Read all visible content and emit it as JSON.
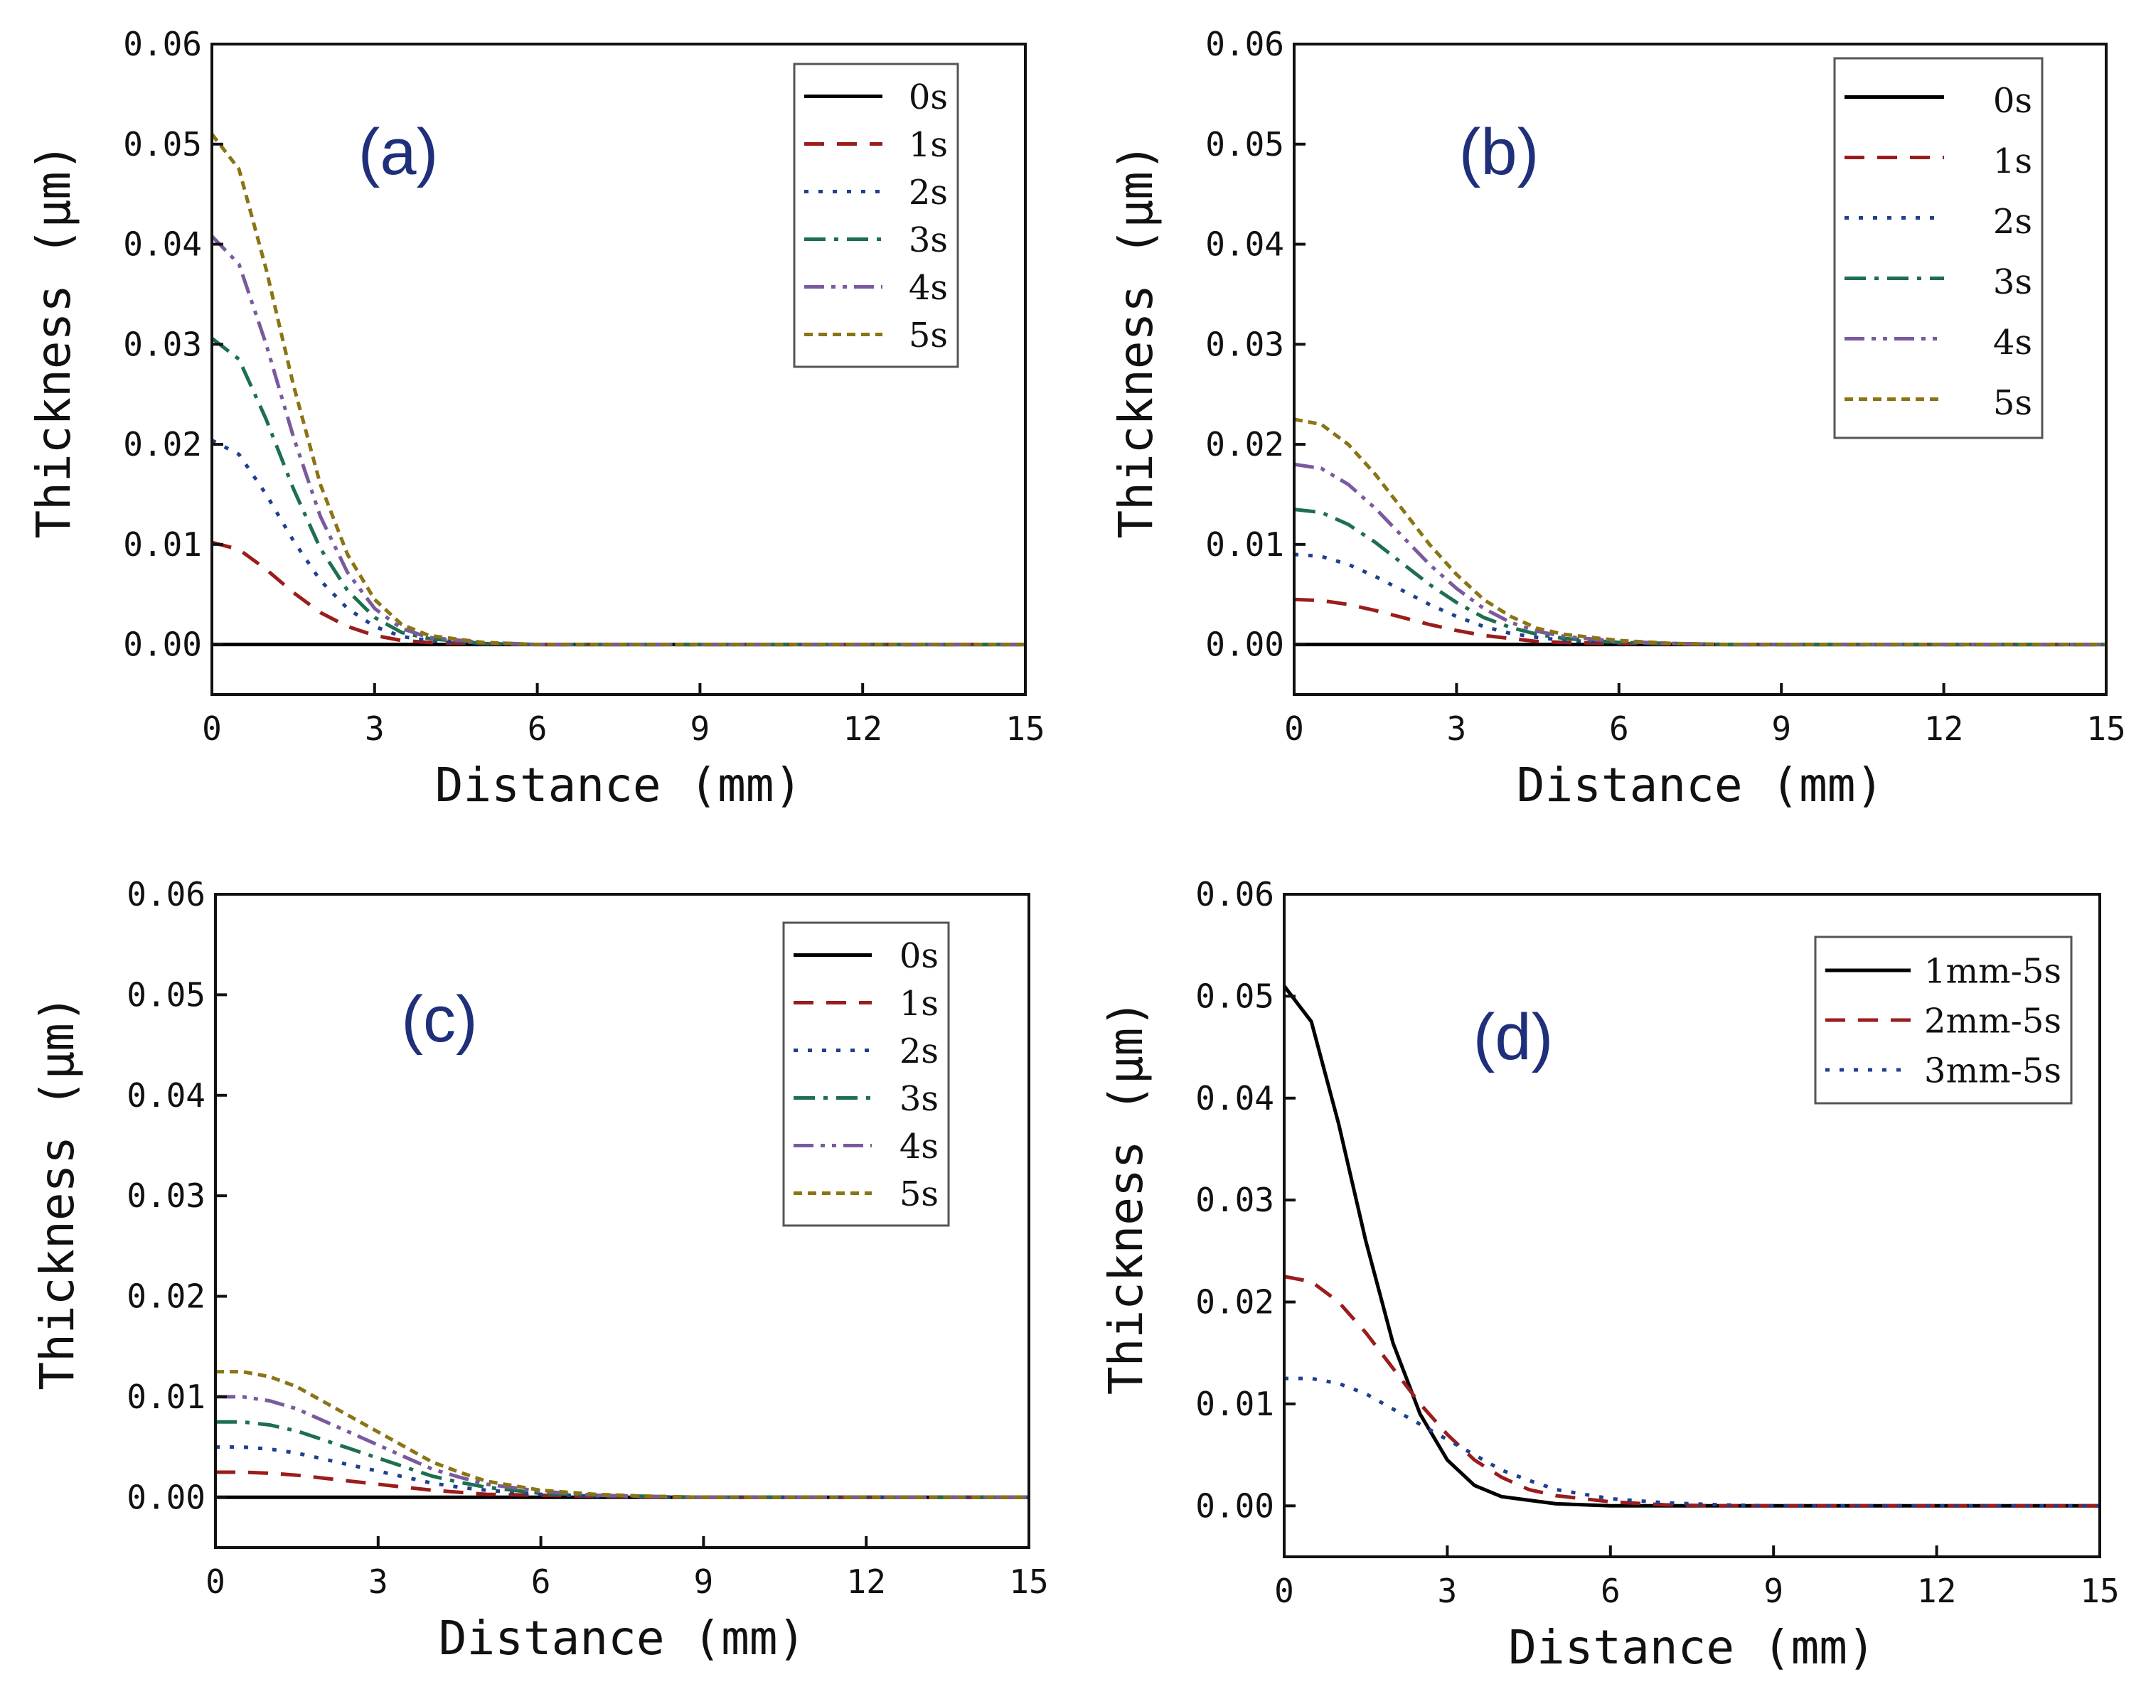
{
  "colors": {
    "0s": "#000000",
    "1s": "#9b1c1c",
    "2s": "#1f3f8f",
    "3s": "#1d6f4f",
    "4s": "#7a5a9e",
    "5s": "#8a7414",
    "panel_label": "#1f2f7a"
  },
  "chart_data": [
    {
      "type": "line",
      "panel": "(a)",
      "xlabel": "Distance (mm)",
      "ylabel": "Thickness (μm)",
      "xlim": [
        0,
        15
      ],
      "ylim": [
        -0.005,
        0.06
      ],
      "xticks": [
        "0",
        "3",
        "6",
        "9",
        "12",
        "15"
      ],
      "yticks": [
        "0.00",
        "0.01",
        "0.02",
        "0.03",
        "0.04",
        "0.05",
        "0.06"
      ],
      "legend": "top-right",
      "series": [
        {
          "name": "0s",
          "key": "0s",
          "dash": "solid",
          "x": [
            0,
            15
          ],
          "y": [
            0,
            0
          ]
        },
        {
          "name": "1s",
          "key": "1s",
          "dash": "dash",
          "x": [
            0,
            0.5,
            1,
            1.5,
            2,
            2.5,
            3,
            3.5,
            4,
            5,
            6,
            15
          ],
          "y": [
            0.0102,
            0.0095,
            0.0075,
            0.0052,
            0.0032,
            0.0018,
            0.0009,
            0.0004,
            0.0002,
            5e-05,
            0,
            0
          ]
        },
        {
          "name": "2s",
          "key": "2s",
          "dash": "dot",
          "x": [
            0,
            0.5,
            1,
            1.5,
            2,
            2.5,
            3,
            3.5,
            4,
            5,
            6,
            15
          ],
          "y": [
            0.0204,
            0.019,
            0.015,
            0.0104,
            0.0064,
            0.0036,
            0.0018,
            0.0008,
            0.0004,
            0.0001,
            0,
            0
          ]
        },
        {
          "name": "3s",
          "key": "3s",
          "dash": "dashdot",
          "x": [
            0,
            0.5,
            1,
            1.5,
            2,
            2.5,
            3,
            3.5,
            4,
            5,
            6,
            15
          ],
          "y": [
            0.0306,
            0.0285,
            0.0225,
            0.0156,
            0.0096,
            0.0054,
            0.0027,
            0.0012,
            0.0006,
            0.0001,
            0,
            0
          ]
        },
        {
          "name": "4s",
          "key": "4s",
          "dash": "dashdotdot",
          "x": [
            0,
            0.5,
            1,
            1.5,
            2,
            2.5,
            3,
            3.5,
            4,
            5,
            6,
            15
          ],
          "y": [
            0.0408,
            0.038,
            0.03,
            0.0208,
            0.0128,
            0.0072,
            0.0036,
            0.0016,
            0.0007,
            0.0002,
            0,
            0
          ]
        },
        {
          "name": "5s",
          "key": "5s",
          "dash": "shortdash",
          "x": [
            0,
            0.5,
            1,
            1.5,
            2,
            2.5,
            3,
            3.5,
            4,
            5,
            6,
            15
          ],
          "y": [
            0.051,
            0.0475,
            0.0375,
            0.026,
            0.016,
            0.009,
            0.0045,
            0.002,
            0.0009,
            0.0002,
            0,
            0
          ]
        }
      ]
    },
    {
      "type": "line",
      "panel": "(b)",
      "xlabel": "Distance (mm)",
      "ylabel": "Thickness (μm)",
      "xlim": [
        0,
        15
      ],
      "ylim": [
        -0.005,
        0.06
      ],
      "xticks": [
        "0",
        "3",
        "6",
        "9",
        "12",
        "15"
      ],
      "yticks": [
        "0.00",
        "0.01",
        "0.02",
        "0.03",
        "0.04",
        "0.05",
        "0.06"
      ],
      "legend": "top-right",
      "series": [
        {
          "name": "0s",
          "key": "0s",
          "dash": "solid",
          "x": [
            0,
            15
          ],
          "y": [
            0,
            0
          ]
        },
        {
          "name": "1s",
          "key": "1s",
          "dash": "dash",
          "x": [
            0,
            0.5,
            1,
            1.5,
            2,
            2.5,
            3,
            3.5,
            4,
            4.5,
            5,
            6,
            7,
            8,
            15
          ],
          "y": [
            0.0045,
            0.0044,
            0.004,
            0.0034,
            0.0027,
            0.002,
            0.0014,
            0.0009,
            0.0006,
            0.0003,
            0.0002,
            0.0001,
            3e-05,
            0,
            0
          ]
        },
        {
          "name": "2s",
          "key": "2s",
          "dash": "dot",
          "x": [
            0,
            0.5,
            1,
            1.5,
            2,
            2.5,
            3,
            3.5,
            4,
            4.5,
            5,
            6,
            7,
            8,
            15
          ],
          "y": [
            0.009,
            0.0088,
            0.008,
            0.0068,
            0.0054,
            0.004,
            0.0028,
            0.0018,
            0.0011,
            0.0007,
            0.0004,
            0.0002,
            6e-05,
            0,
            0
          ]
        },
        {
          "name": "3s",
          "key": "3s",
          "dash": "dashdot",
          "x": [
            0,
            0.5,
            1,
            1.5,
            2,
            2.5,
            3,
            3.5,
            4,
            4.5,
            5,
            6,
            7,
            8,
            15
          ],
          "y": [
            0.0135,
            0.0132,
            0.012,
            0.0102,
            0.0081,
            0.006,
            0.0042,
            0.0027,
            0.0017,
            0.001,
            0.0006,
            0.0002,
            0.0001,
            0,
            0
          ]
        },
        {
          "name": "4s",
          "key": "4s",
          "dash": "dashdotdot",
          "x": [
            0,
            0.5,
            1,
            1.5,
            2,
            2.5,
            3,
            3.5,
            4,
            4.5,
            5,
            6,
            7,
            8,
            15
          ],
          "y": [
            0.018,
            0.0176,
            0.016,
            0.0136,
            0.0108,
            0.008,
            0.0056,
            0.0036,
            0.0022,
            0.0013,
            0.0008,
            0.0003,
            0.0001,
            0,
            0
          ]
        },
        {
          "name": "5s",
          "key": "5s",
          "dash": "shortdash",
          "x": [
            0,
            0.5,
            1,
            1.5,
            2,
            2.5,
            3,
            3.5,
            4,
            4.5,
            5,
            6,
            7,
            8,
            15
          ],
          "y": [
            0.0225,
            0.022,
            0.02,
            0.017,
            0.0135,
            0.01,
            0.007,
            0.0045,
            0.0028,
            0.0016,
            0.001,
            0.0004,
            0.0001,
            0,
            0
          ]
        }
      ]
    },
    {
      "type": "line",
      "panel": "(c)",
      "xlabel": "Distance (mm)",
      "ylabel": "Thickness (μm)",
      "xlim": [
        0,
        15
      ],
      "ylim": [
        -0.005,
        0.06
      ],
      "xticks": [
        "0",
        "3",
        "6",
        "9",
        "12",
        "15"
      ],
      "yticks": [
        "0.00",
        "0.01",
        "0.02",
        "0.03",
        "0.04",
        "0.05",
        "0.06"
      ],
      "legend": "top-right",
      "series": [
        {
          "name": "0s",
          "key": "0s",
          "dash": "solid",
          "x": [
            0,
            15
          ],
          "y": [
            0,
            0
          ]
        },
        {
          "name": "1s",
          "key": "1s",
          "dash": "dash",
          "x": [
            0,
            0.5,
            1,
            1.5,
            2,
            2.5,
            3,
            3.5,
            4,
            4.5,
            5,
            6,
            7,
            8,
            9,
            15
          ],
          "y": [
            0.0025,
            0.0025,
            0.0024,
            0.0022,
            0.0019,
            0.0016,
            0.0013,
            0.001,
            0.0007,
            0.0005,
            0.0003,
            0.0002,
            0.0001,
            3e-05,
            0,
            0
          ]
        },
        {
          "name": "2s",
          "key": "2s",
          "dash": "dot",
          "x": [
            0,
            0.5,
            1,
            1.5,
            2,
            2.5,
            3,
            3.5,
            4,
            4.5,
            5,
            6,
            7,
            8,
            9,
            15
          ],
          "y": [
            0.005,
            0.005,
            0.0048,
            0.0044,
            0.0038,
            0.0032,
            0.0026,
            0.002,
            0.0014,
            0.001,
            0.0007,
            0.0003,
            0.0001,
            5e-05,
            0,
            0
          ]
        },
        {
          "name": "3s",
          "key": "3s",
          "dash": "dashdot",
          "x": [
            0,
            0.5,
            1,
            1.5,
            2,
            2.5,
            3,
            3.5,
            4,
            4.5,
            5,
            6,
            7,
            8,
            9,
            15
          ],
          "y": [
            0.0075,
            0.0075,
            0.0072,
            0.0066,
            0.0057,
            0.0048,
            0.0039,
            0.003,
            0.0021,
            0.0015,
            0.001,
            0.0004,
            0.0002,
            0.0001,
            0,
            0
          ]
        },
        {
          "name": "4s",
          "key": "4s",
          "dash": "dashdotdot",
          "x": [
            0,
            0.5,
            1,
            1.5,
            2,
            2.5,
            3,
            3.5,
            4,
            4.5,
            5,
            6,
            7,
            8,
            9,
            15
          ],
          "y": [
            0.01,
            0.01,
            0.0096,
            0.0088,
            0.0076,
            0.0064,
            0.0052,
            0.004,
            0.0028,
            0.002,
            0.0013,
            0.0006,
            0.0002,
            0.0001,
            0,
            0
          ]
        },
        {
          "name": "5s",
          "key": "5s",
          "dash": "shortdash",
          "x": [
            0,
            0.5,
            1,
            1.5,
            2,
            2.5,
            3,
            3.5,
            4,
            4.5,
            5,
            6,
            7,
            8,
            9,
            15
          ],
          "y": [
            0.0125,
            0.0125,
            0.012,
            0.011,
            0.0095,
            0.008,
            0.0065,
            0.005,
            0.0035,
            0.0025,
            0.0016,
            0.0007,
            0.0003,
            0.0001,
            0,
            0
          ]
        }
      ]
    },
    {
      "type": "line",
      "panel": "(d)",
      "xlabel": "Distance (mm)",
      "ylabel": "Thickness (μm)",
      "xlim": [
        0,
        15
      ],
      "ylim": [
        -0.005,
        0.06
      ],
      "xticks": [
        "0",
        "3",
        "6",
        "9",
        "12",
        "15"
      ],
      "yticks": [
        "0.00",
        "0.01",
        "0.02",
        "0.03",
        "0.04",
        "0.05",
        "0.06"
      ],
      "legend": "top-right",
      "series": [
        {
          "name": "1mm-5s",
          "key": "0s",
          "dash": "solid",
          "x": [
            0,
            0.5,
            1,
            1.5,
            2,
            2.5,
            3,
            3.5,
            4,
            5,
            6,
            15
          ],
          "y": [
            0.051,
            0.0475,
            0.0375,
            0.026,
            0.016,
            0.009,
            0.0045,
            0.002,
            0.0009,
            0.0002,
            0,
            0
          ]
        },
        {
          "name": "2mm-5s",
          "key": "1s",
          "dash": "dash",
          "x": [
            0,
            0.5,
            1,
            1.5,
            2,
            2.5,
            3,
            3.5,
            4,
            4.5,
            5,
            6,
            7,
            8,
            15
          ],
          "y": [
            0.0225,
            0.022,
            0.02,
            0.017,
            0.0135,
            0.01,
            0.007,
            0.0045,
            0.0028,
            0.0016,
            0.001,
            0.0004,
            0.0001,
            0,
            0
          ]
        },
        {
          "name": "3mm-5s",
          "key": "2s",
          "dash": "dot",
          "x": [
            0,
            0.5,
            1,
            1.5,
            2,
            2.5,
            3,
            3.5,
            4,
            4.5,
            5,
            6,
            7,
            8,
            9,
            15
          ],
          "y": [
            0.0125,
            0.0125,
            0.012,
            0.011,
            0.0095,
            0.008,
            0.0065,
            0.005,
            0.0035,
            0.0025,
            0.0016,
            0.0007,
            0.0003,
            0.0001,
            0,
            0
          ]
        }
      ]
    }
  ]
}
